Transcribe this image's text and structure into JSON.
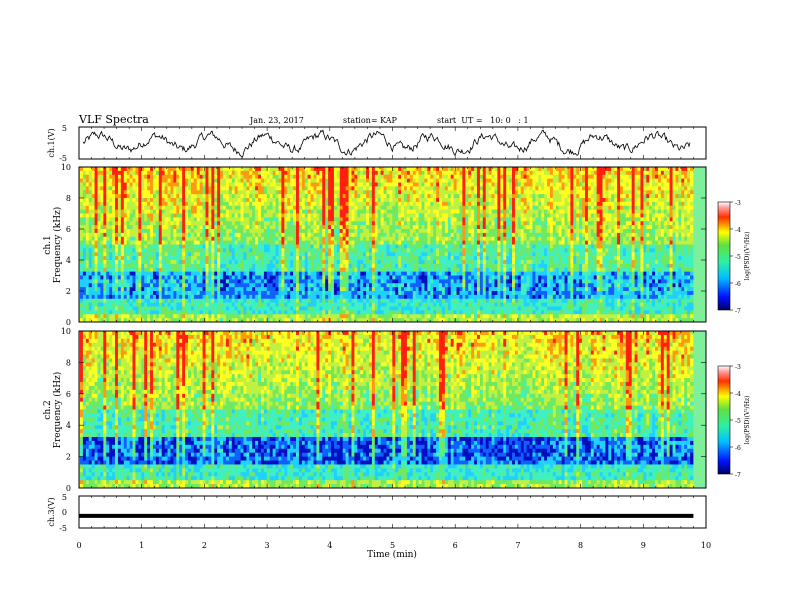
{
  "header": {
    "title": "VLF Spectra",
    "date": "Jan. 23, 2017",
    "station": "station= KAP",
    "start_ut": "start  UT =   10: 0   : 1"
  },
  "chart_data": [
    {
      "type": "line",
      "ylabel": "ch.1(V)",
      "ylim": [
        -5,
        5
      ],
      "ytick_labels": [
        "5",
        "-5"
      ],
      "xlim": [
        0,
        10
      ],
      "color": "#000000"
    },
    {
      "type": "heatmap",
      "ylabel": "ch.1\nFrequency (kHz)",
      "ylabel_lines": [
        "ch.1",
        "Frequency (kHz)"
      ],
      "ylim": [
        0,
        10
      ],
      "ytick_labels": [
        "0",
        "2",
        "4",
        "6",
        "8",
        "10"
      ],
      "xlim": [
        0,
        10
      ],
      "colorbar": {
        "label": "log(PSD)(V²/Hz)",
        "range": [
          -7,
          -3
        ],
        "tick_labels": [
          "-3",
          "-4",
          "-5",
          "-6",
          "-7"
        ]
      }
    },
    {
      "type": "heatmap",
      "ylabel": "ch.2\nFrequency (kHz)",
      "ylabel_lines": [
        "ch.2",
        "Frequency (kHz)"
      ],
      "ylim": [
        0,
        10
      ],
      "ytick_labels": [
        "0",
        "2",
        "4",
        "6",
        "8",
        "10"
      ],
      "xlim": [
        0,
        10
      ],
      "colorbar": {
        "label": "log(PSD)(V²/Hz)",
        "range": [
          -7,
          -3
        ],
        "tick_labels": [
          "-3",
          "-4",
          "-5",
          "-6",
          "-7"
        ]
      }
    },
    {
      "type": "line",
      "ylabel": "ch.3(V)",
      "ylim": [
        -5,
        5
      ],
      "ytick_labels": [
        "5",
        "0",
        "-5"
      ],
      "xlim": [
        0,
        10
      ],
      "series": [
        {
          "x": [
            0,
            9.8
          ],
          "y": [
            -1.2,
            -1.2
          ]
        }
      ],
      "xlabel": "Time (min)",
      "xtick_labels": [
        "0",
        "1",
        "2",
        "3",
        "4",
        "5",
        "6",
        "7",
        "8",
        "9",
        "10"
      ]
    }
  ]
}
